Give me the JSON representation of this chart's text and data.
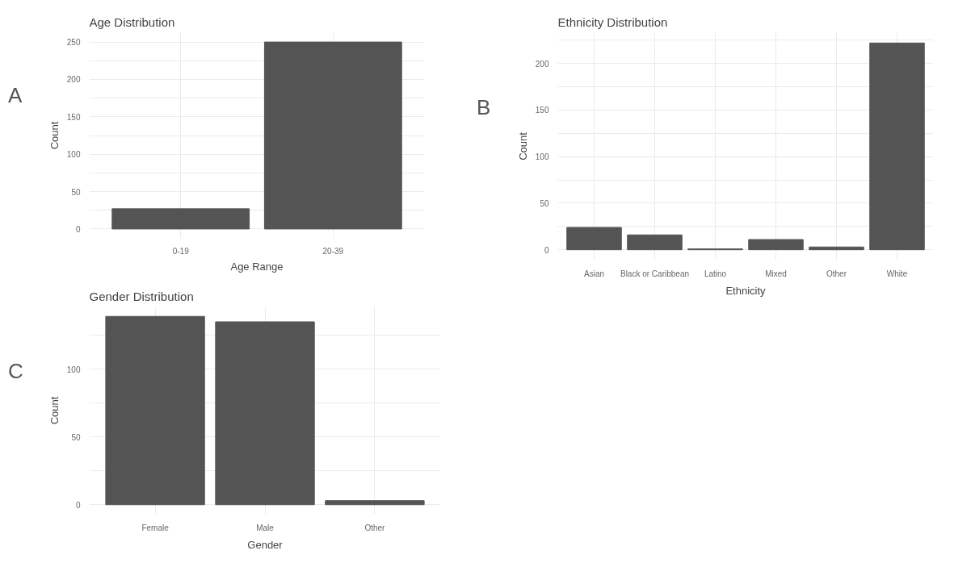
{
  "chart_data": [
    {
      "type": "bar",
      "title": "Age Distribution",
      "xlabel": "Age Range",
      "ylabel": "Count",
      "annotations": [
        "A"
      ],
      "categories": [
        "0-19",
        "20-39"
      ],
      "values": [
        27,
        250
      ],
      "color": "#545454",
      "ylim": [
        -12.5,
        262.5
      ],
      "yticks": [
        0,
        50,
        100,
        150,
        200,
        250
      ],
      "grid": true
    },
    {
      "type": "bar",
      "title": "Ethnicity Distribution",
      "xlabel": "Ethnicity",
      "ylabel": "Count",
      "annotations": [
        "B"
      ],
      "categories": [
        "Asian",
        "Black or Caribbean",
        "Latino",
        "Mixed",
        "Other",
        "White"
      ],
      "values": [
        24,
        16,
        1,
        11,
        3,
        222
      ],
      "color": "#545454",
      "ylim": [
        -11.1,
        233.1
      ],
      "yticks": [
        0,
        50,
        100,
        150,
        200
      ],
      "grid": true
    },
    {
      "type": "bar",
      "title": "Gender Distribution",
      "xlabel": "Gender",
      "ylabel": "Count",
      "annotations": [
        "C"
      ],
      "categories": [
        "Female",
        "Male",
        "Other"
      ],
      "values": [
        139,
        135,
        3
      ],
      "color": "#545454",
      "ylim": [
        -7,
        146
      ],
      "yticks": [
        0,
        50,
        100
      ],
      "grid": true
    }
  ]
}
